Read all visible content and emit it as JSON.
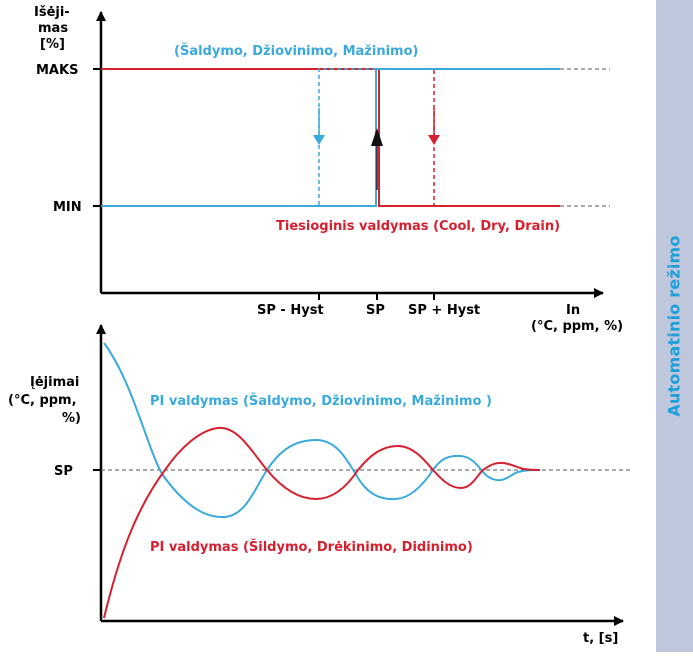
{
  "side_tab": {
    "label": "Automatinio režimo"
  },
  "top_diagram": {
    "y_axis_label": [
      "Išėji-",
      "mas",
      "[%]"
    ],
    "x_axis_label": [
      "In",
      "(°C, ppm, %)"
    ],
    "y_ticks": {
      "max": "MAKS",
      "min": "MIN"
    },
    "x_ticks": {
      "left": "SP - Hyst",
      "center": "SP",
      "right": "SP + Hyst"
    },
    "blue_caption": "(Šaldymo, Džiovinimo, Mažinimo)",
    "red_caption": "Tiesioginis valdymas (Cool, Dry, Drain)"
  },
  "bottom_diagram": {
    "y_axis_label": [
      "Įėjimai",
      "(°C, ppm,",
      "%)"
    ],
    "x_axis_label": "t, [s]",
    "y_tick": "SP",
    "blue_caption": "PI valdymas (Šaldymo, Džiovinimo, Mažinimo )",
    "red_caption": "PI valdymas (Šildymo, Drėkinimo, Didinimo)"
  },
  "colors": {
    "blue": "#3aa9dc",
    "red": "#d6202f",
    "axis": "#000000",
    "side_tab": "#bfc7dc",
    "side_tab_text": "#1d9fd9"
  }
}
